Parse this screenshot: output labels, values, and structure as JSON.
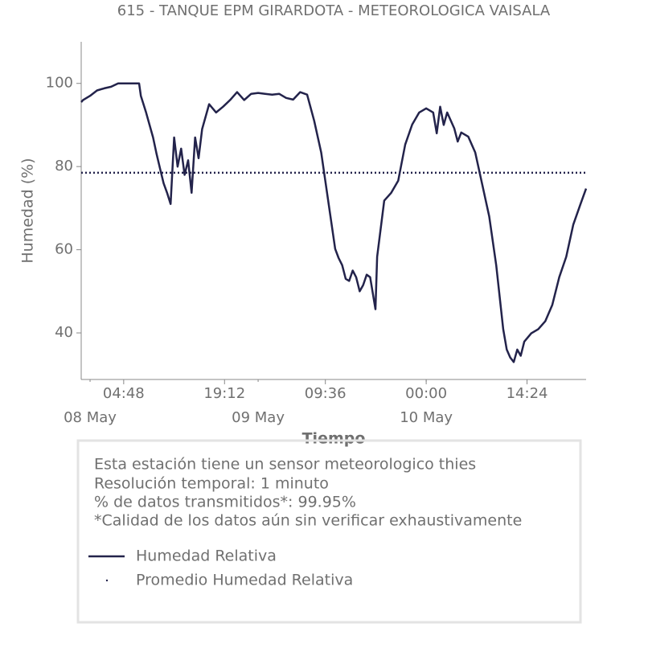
{
  "chart_data": {
    "type": "line",
    "title": "615 - TANQUE EPM GIRARDOTA - METEOROLOGICA VAISALA",
    "xlabel": "Tiempo",
    "ylabel": "Humedad (%)",
    "xlim": [
      "07 May 22:44",
      "10 May 22:50"
    ],
    "ylim": [
      28.8,
      110
    ],
    "yticks": [
      40,
      60,
      80,
      100
    ],
    "xticks": [
      {
        "value": "08 May 04:48",
        "label": "04:48"
      },
      {
        "value": "08 May 19:12",
        "label": "19:12"
      },
      {
        "value": "09 May 09:36",
        "label": "09:36"
      },
      {
        "value": "10 May 00:00",
        "label": "00:00"
      },
      {
        "value": "10 May 14:24",
        "label": "14:24"
      }
    ],
    "xticks_minor": [
      {
        "value": "08 May 00:00",
        "label": "08 May"
      },
      {
        "value": "09 May 00:00",
        "label": "09 May"
      },
      {
        "value": "10 May 00:00",
        "label": "10 May"
      }
    ],
    "series": [
      {
        "name": "Humedad Relativa",
        "color": "#23234b",
        "x": [
          "07 May 22:44",
          "07 May 23:00",
          "08 May 00:00",
          "08 May 01:00",
          "08 May 02:00",
          "08 May 03:00",
          "08 May 04:00",
          "08 May 05:00",
          "08 May 06:00",
          "08 May 07:00",
          "08 May 07:15",
          "08 May 08:00",
          "08 May 09:00",
          "08 May 09:30",
          "08 May 10:00",
          "08 May 10:30",
          "08 May 11:00",
          "08 May 11:30",
          "08 May 12:00",
          "08 May 12:30",
          "08 May 13:00",
          "08 May 13:30",
          "08 May 14:00",
          "08 May 14:30",
          "08 May 15:00",
          "08 May 15:30",
          "08 May 16:00",
          "08 May 17:00",
          "08 May 18:00",
          "08 May 19:00",
          "08 May 20:00",
          "08 May 21:00",
          "08 May 22:00",
          "08 May 23:00",
          "09 May 00:00",
          "09 May 01:00",
          "09 May 02:00",
          "09 May 03:00",
          "09 May 04:00",
          "09 May 05:00",
          "09 May 06:00",
          "09 May 07:00",
          "09 May 08:00",
          "09 May 09:00",
          "09 May 10:00",
          "09 May 11:00",
          "09 May 11:30",
          "09 May 12:00",
          "09 May 12:30",
          "09 May 13:00",
          "09 May 13:30",
          "09 May 14:00",
          "09 May 14:30",
          "09 May 15:00",
          "09 May 15:30",
          "09 May 16:00",
          "09 May 16:45",
          "09 May 17:00",
          "09 May 18:00",
          "09 May 19:00",
          "09 May 20:00",
          "09 May 21:00",
          "09 May 22:00",
          "09 May 23:00",
          "10 May 00:00",
          "10 May 01:00",
          "10 May 01:30",
          "10 May 02:00",
          "10 May 02:30",
          "10 May 03:00",
          "10 May 04:00",
          "10 May 04:30",
          "10 May 05:00",
          "10 May 06:00",
          "10 May 07:00",
          "10 May 08:00",
          "10 May 09:00",
          "10 May 10:00",
          "10 May 11:00",
          "10 May 11:30",
          "10 May 12:00",
          "10 May 12:30",
          "10 May 13:00",
          "10 May 13:30",
          "10 May 14:00",
          "10 May 15:00",
          "10 May 16:00",
          "10 May 17:00",
          "10 May 18:00",
          "10 May 19:00",
          "10 May 20:00",
          "10 May 21:00",
          "10 May 22:00",
          "10 May 22:50"
        ],
        "values": [
          95.5,
          96,
          97,
          98.3,
          98.8,
          99.2,
          100,
          100,
          100,
          100,
          97,
          93,
          87,
          83,
          79.5,
          76,
          73.7,
          71,
          87,
          80,
          84.3,
          78,
          81.5,
          73.7,
          87,
          82,
          89,
          95,
          93,
          94.4,
          96,
          97.9,
          96,
          97.5,
          97.7,
          97.5,
          97.3,
          97.5,
          96.5,
          96.1,
          97.9,
          97.3,
          91,
          83.4,
          71.8,
          60.2,
          58,
          56.3,
          53,
          52.5,
          55,
          53.4,
          50,
          51.5,
          54,
          53.4,
          45.7,
          58.3,
          71.8,
          73.7,
          76.6,
          85.3,
          90.1,
          93,
          94,
          93,
          88,
          94.4,
          90,
          93,
          89.2,
          86,
          88.2,
          87.2,
          83.4,
          75.7,
          68,
          56.3,
          40.9,
          36,
          34.1,
          33,
          36,
          34.5,
          37.9,
          39.9,
          40.9,
          42.8,
          46.7,
          53.4,
          58.3,
          66,
          70.8,
          74.7
        ]
      }
    ],
    "mean_line": {
      "name": "Promedio Humedad Relativa",
      "color": "#23234b",
      "value": 78.5
    }
  },
  "info_box": {
    "lines": [
      "Esta estación tiene un sensor meteorologico thies",
      "Resolución temporal: 1 minuto",
      "% de datos transmitidos*: 99.95%",
      "*Calidad de los datos aún sin verificar exhaustivamente"
    ]
  }
}
